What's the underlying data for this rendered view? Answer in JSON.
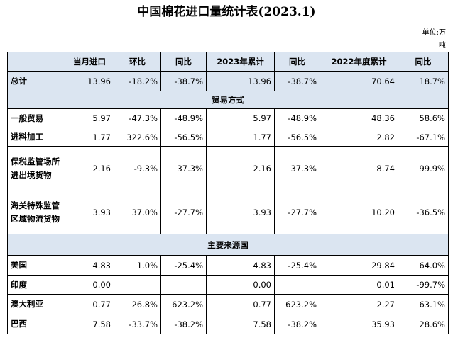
{
  "header": {
    "title": "中国棉花进口量统计表(2023.1)",
    "unit": "单位:万吨"
  },
  "table": {
    "columns": [
      "",
      "当月进口",
      "环比",
      "同比",
      "2023年累计",
      "同比",
      "2022年度累计",
      "同比"
    ],
    "rows": [
      [
        "总计",
        "13.96",
        "-18.2%",
        "-38.7%",
        "13.96",
        "-38.7%",
        "70.64",
        "18.7%"
      ],
      [
        "贸易方式"
      ],
      [
        "一般贸易",
        "5.97",
        "-47.3%",
        "-48.9%",
        "5.97",
        "-48.9%",
        "48.36",
        "58.6%"
      ],
      [
        "进料加工",
        "1.77",
        "322.6%",
        "-56.5%",
        "1.77",
        "-56.5%",
        "2.82",
        "-67.1%"
      ],
      [
        "保税监管场所进出境货物",
        "2.16",
        "-9.3%",
        "37.3%",
        "2.16",
        "37.3%",
        "8.74",
        "99.9%"
      ],
      [
        "海关特殊监管区域物流货物",
        "3.93",
        "37.0%",
        "-27.7%",
        "3.93",
        "-27.7%",
        "10.20",
        "-36.5%"
      ],
      [
        "主要来源国"
      ],
      [
        "美国",
        "4.83",
        "1.0%",
        "-25.4%",
        "4.83",
        "-25.4%",
        "29.84",
        "64.0%"
      ],
      [
        "印度",
        "0.00",
        "—",
        "—",
        "0.00",
        "—",
        "0.01",
        "-99.7%"
      ],
      [
        "澳大利亚",
        "0.77",
        "26.8%",
        "623.2%",
        "0.77",
        "623.2%",
        "2.27",
        "63.1%"
      ],
      [
        "巴西",
        "7.58",
        "-33.7%",
        "-38.2%",
        "7.58",
        "-38.2%",
        "35.93",
        "28.6%"
      ]
    ]
  }
}
